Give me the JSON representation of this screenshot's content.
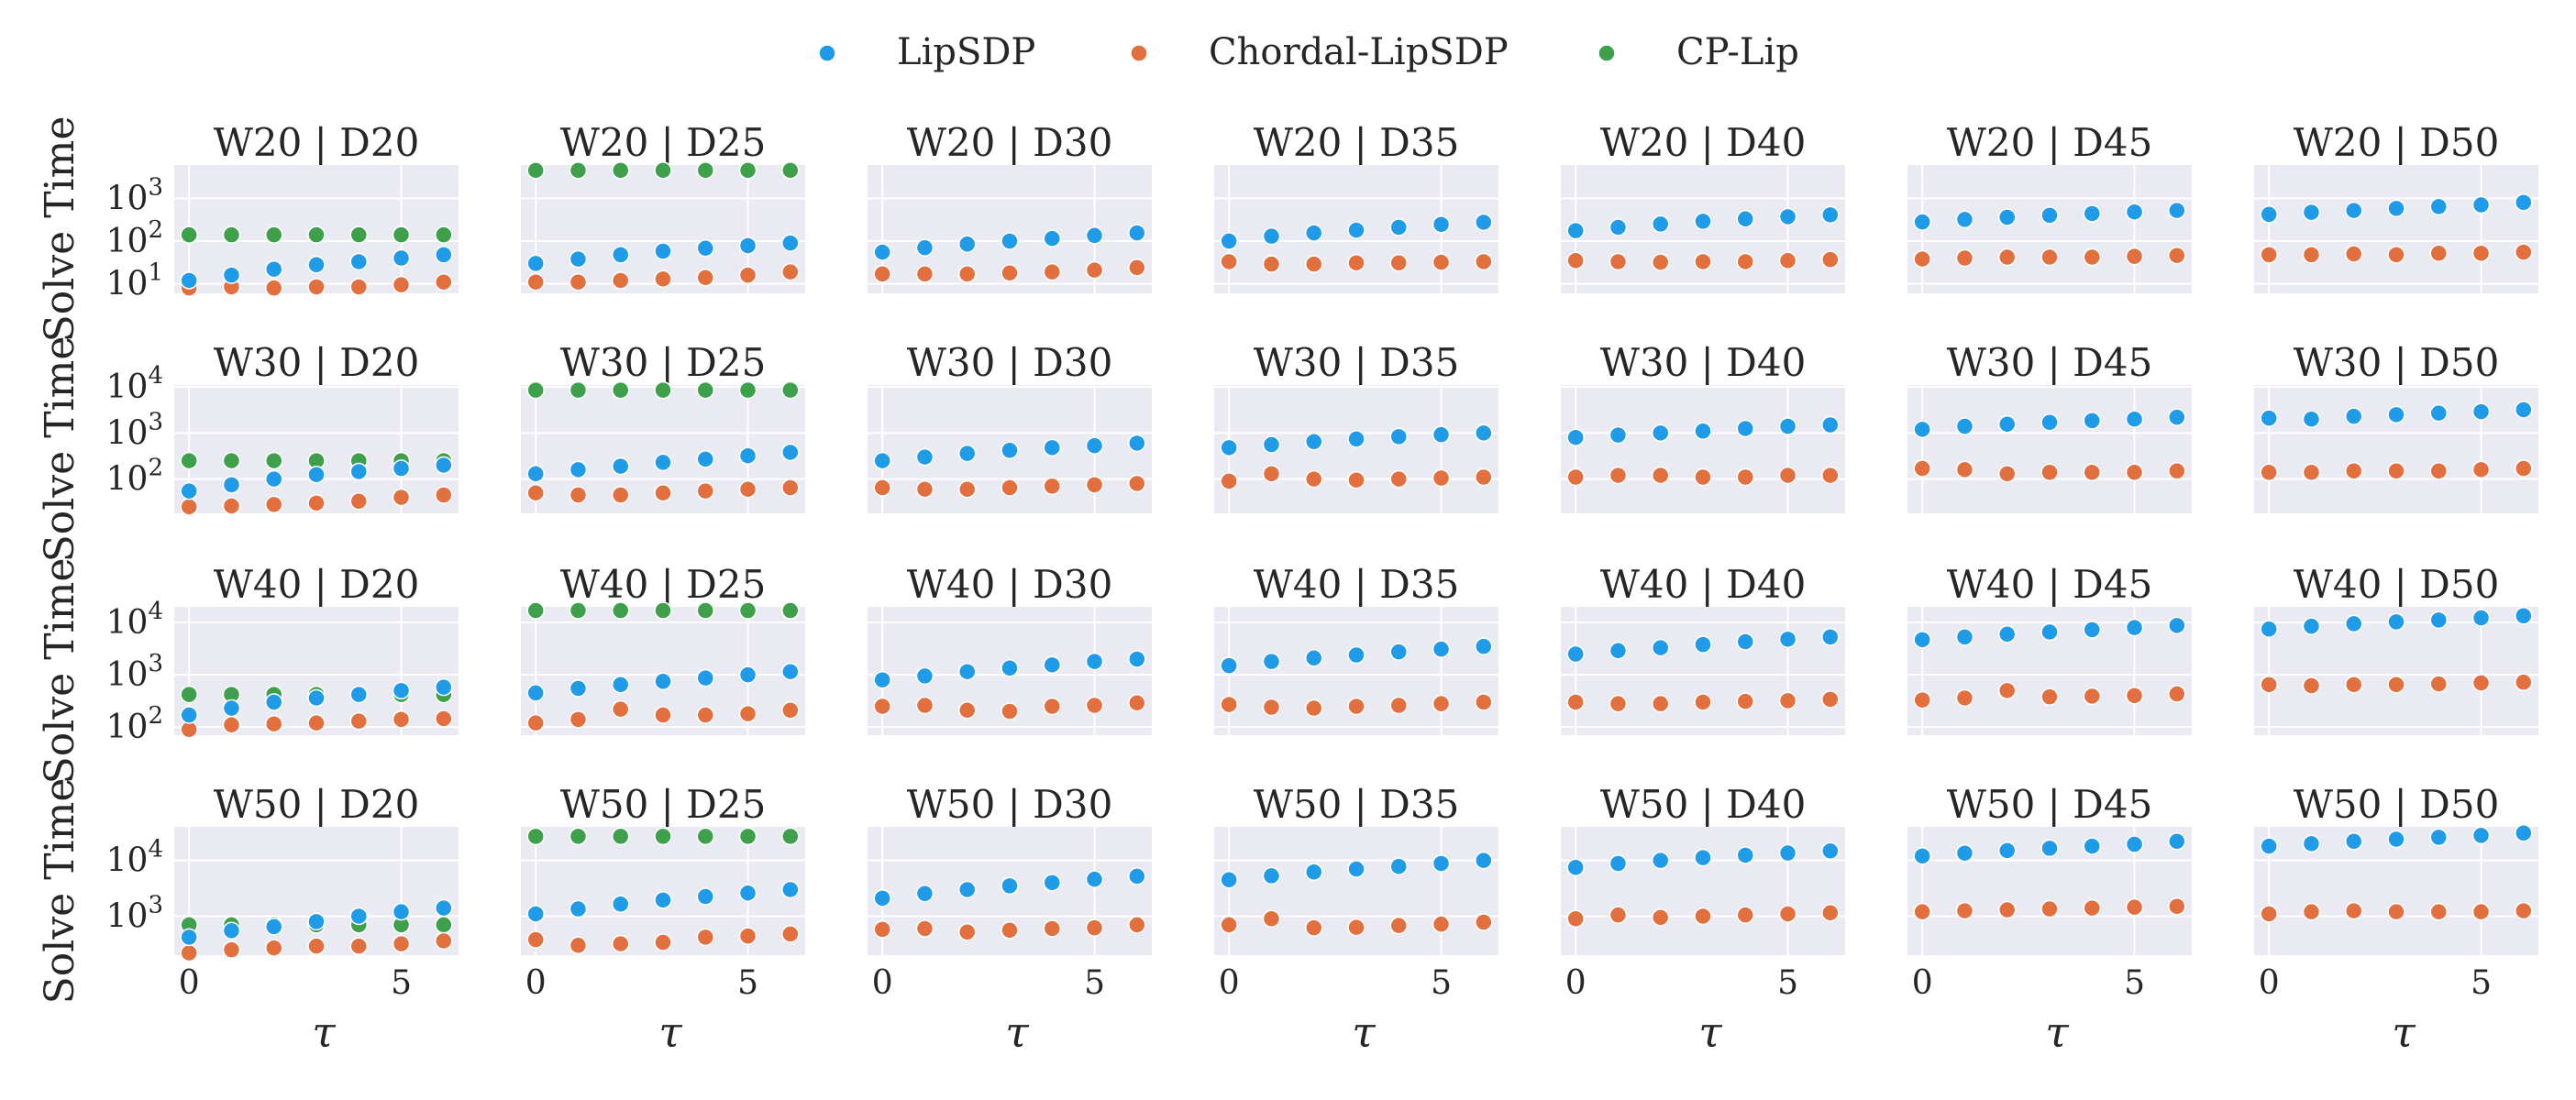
{
  "chart_data": {
    "type": "scatter",
    "x_label_symbol": "τ",
    "y_label": "Solve Time",
    "y_scale": "log",
    "x": [
      0,
      1,
      2,
      3,
      4,
      5,
      6
    ],
    "x_ticks": [
      0,
      5
    ],
    "colors": {
      "LipSDP": "#1f9be8",
      "Chordal-LipSDP": "#e2703f",
      "CP-Lip": "#3ea04a",
      "background": "#eaeaf2",
      "grid": "#ffffff"
    },
    "legend": {
      "placement": "top-center",
      "entries": [
        "LipSDP",
        "Chordal-LipSDP",
        "CP-Lip"
      ]
    },
    "rows": [
      {
        "width": "W20",
        "ylim": [
          6,
          6000
        ],
        "yticks": [
          {
            "value": 10,
            "base": "10",
            "exp": "1"
          },
          {
            "value": 100,
            "base": "10",
            "exp": "2"
          },
          {
            "value": 1000,
            "base": "10",
            "exp": "3"
          }
        ],
        "panels": [
          {
            "title": "W20 | D20",
            "series": {
              "LipSDP": [
                12,
                16,
                22,
                28,
                33,
                40,
                48
              ],
              "Chordal-LipSDP": [
                8,
                8.5,
                8,
                8.5,
                8.5,
                9.5,
                11
              ],
              "CP-Lip": [
                140,
                140,
                140,
                140,
                140,
                140,
                140
              ]
            }
          },
          {
            "title": "W20 | D25",
            "series": {
              "LipSDP": [
                30,
                38,
                48,
                58,
                68,
                78,
                90
              ],
              "Chordal-LipSDP": [
                11,
                11,
                12,
                13,
                14,
                16,
                19
              ],
              "CP-Lip": [
                4500,
                4500,
                4500,
                4500,
                4500,
                4500,
                4500
              ]
            }
          },
          {
            "title": "W20 | D30",
            "series": {
              "LipSDP": [
                55,
                70,
                85,
                100,
                115,
                135,
                155
              ],
              "Chordal-LipSDP": [
                17,
                17,
                17,
                18,
                19,
                21,
                24
              ],
              "CP-Lip": []
            }
          },
          {
            "title": "W20 | D35",
            "series": {
              "LipSDP": [
                100,
                130,
                155,
                180,
                210,
                245,
                275
              ],
              "Chordal-LipSDP": [
                33,
                29,
                29,
                31,
                31,
                32,
                33
              ],
              "CP-Lip": []
            }
          },
          {
            "title": "W20 | D40",
            "series": {
              "LipSDP": [
                175,
                210,
                250,
                290,
                330,
                370,
                410
              ],
              "Chordal-LipSDP": [
                35,
                33,
                32,
                33,
                33,
                35,
                37
              ],
              "CP-Lip": []
            }
          },
          {
            "title": "W20 | D45",
            "series": {
              "LipSDP": [
                280,
                320,
                360,
                400,
                440,
                480,
                520
              ],
              "Chordal-LipSDP": [
                38,
                40,
                42,
                42,
                42,
                44,
                46
              ],
              "CP-Lip": []
            }
          },
          {
            "title": "W20 | D50",
            "series": {
              "LipSDP": [
                420,
                470,
                520,
                580,
                640,
                700,
                800
              ],
              "Chordal-LipSDP": [
                48,
                48,
                50,
                48,
                52,
                52,
                55
              ],
              "CP-Lip": []
            }
          }
        ]
      },
      {
        "width": "W30",
        "ylim": [
          18,
          11000
        ],
        "yticks": [
          {
            "value": 100,
            "base": "10",
            "exp": "2"
          },
          {
            "value": 1000,
            "base": "10",
            "exp": "3"
          },
          {
            "value": 10000,
            "base": "10",
            "exp": "4"
          }
        ],
        "panels": [
          {
            "title": "W30 | D20",
            "series": {
              "LipSDP": [
                55,
                75,
                100,
                125,
                145,
                170,
                200
              ],
              "Chordal-LipSDP": [
                25,
                26,
                28,
                30,
                33,
                40,
                45
              ],
              "CP-Lip": [
                250,
                250,
                250,
                250,
                250,
                250,
                250
              ]
            }
          },
          {
            "title": "W30 | D25",
            "series": {
              "LipSDP": [
                130,
                160,
                190,
                230,
                270,
                320,
                380
              ],
              "Chordal-LipSDP": [
                50,
                45,
                45,
                50,
                55,
                60,
                65
              ],
              "CP-Lip": [
                8500,
                8500,
                8500,
                8500,
                8500,
                8500,
                8500
              ]
            }
          },
          {
            "title": "W30 | D30",
            "series": {
              "LipSDP": [
                250,
                300,
                360,
                420,
                480,
                530,
                600
              ],
              "Chordal-LipSDP": [
                65,
                60,
                60,
                65,
                70,
                75,
                80
              ],
              "CP-Lip": []
            }
          },
          {
            "title": "W30 | D35",
            "series": {
              "LipSDP": [
                480,
                560,
                650,
                740,
                830,
                920,
                1000
              ],
              "Chordal-LipSDP": [
                90,
                130,
                100,
                95,
                100,
                105,
                110
              ],
              "CP-Lip": []
            }
          },
          {
            "title": "W30 | D40",
            "series": {
              "LipSDP": [
                800,
                900,
                1000,
                1100,
                1250,
                1400,
                1500
              ],
              "Chordal-LipSDP": [
                110,
                120,
                120,
                110,
                110,
                120,
                120
              ],
              "CP-Lip": []
            }
          },
          {
            "title": "W30 | D45",
            "series": {
              "LipSDP": [
                1200,
                1400,
                1550,
                1700,
                1850,
                2000,
                2200
              ],
              "Chordal-LipSDP": [
                170,
                160,
                130,
                140,
                140,
                140,
                150
              ],
              "CP-Lip": []
            }
          },
          {
            "title": "W30 | D50",
            "series": {
              "LipSDP": [
                2100,
                2000,
                2300,
                2500,
                2700,
                2900,
                3200
              ],
              "Chordal-LipSDP": [
                140,
                140,
                150,
                150,
                150,
                160,
                170
              ],
              "CP-Lip": []
            }
          }
        ]
      },
      {
        "width": "W40",
        "ylim": [
          70,
          20000
        ],
        "yticks": [
          {
            "value": 100,
            "base": "10",
            "exp": "2"
          },
          {
            "value": 1000,
            "base": "10",
            "exp": "3"
          },
          {
            "value": 10000,
            "base": "10",
            "exp": "4"
          }
        ],
        "panels": [
          {
            "title": "W40 | D20",
            "series": {
              "LipSDP": [
                170,
                230,
                300,
                360,
                420,
                500,
                580
              ],
              "Chordal-LipSDP": [
                90,
                110,
                115,
                120,
                130,
                140,
                145
              ],
              "CP-Lip": [
                420,
                420,
                420,
                420,
                420,
                420,
                420
              ]
            }
          },
          {
            "title": "W40 | D25",
            "series": {
              "LipSDP": [
                450,
                550,
                650,
                750,
                870,
                1000,
                1150
              ],
              "Chordal-LipSDP": [
                120,
                140,
                220,
                170,
                170,
                180,
                210
              ],
              "CP-Lip": [
                17000,
                17000,
                17000,
                17000,
                17000,
                17000,
                17000
              ]
            }
          },
          {
            "title": "W40 | D30",
            "series": {
              "LipSDP": [
                800,
                950,
                1150,
                1350,
                1550,
                1800,
                2000
              ],
              "Chordal-LipSDP": [
                250,
                260,
                210,
                200,
                250,
                260,
                290
              ],
              "CP-Lip": []
            }
          },
          {
            "title": "W40 | D35",
            "series": {
              "LipSDP": [
                1500,
                1800,
                2100,
                2400,
                2750,
                3100,
                3500
              ],
              "Chordal-LipSDP": [
                270,
                240,
                230,
                250,
                260,
                280,
                300
              ],
              "CP-Lip": []
            }
          },
          {
            "title": "W40 | D40",
            "series": {
              "LipSDP": [
                2500,
                2900,
                3300,
                3800,
                4300,
                4800,
                5300
              ],
              "Chordal-LipSDP": [
                300,
                280,
                280,
                300,
                310,
                320,
                340
              ],
              "CP-Lip": []
            }
          },
          {
            "title": "W40 | D45",
            "series": {
              "LipSDP": [
                4700,
                5300,
                6000,
                6600,
                7300,
                8000,
                8800
              ],
              "Chordal-LipSDP": [
                330,
                360,
                500,
                380,
                390,
                400,
                430
              ],
              "CP-Lip": []
            }
          },
          {
            "title": "W40 | D50",
            "series": {
              "LipSDP": [
                7500,
                8500,
                9500,
                10300,
                11200,
                12300,
                13500
              ],
              "Chordal-LipSDP": [
                650,
                620,
                650,
                650,
                670,
                700,
                720
              ],
              "CP-Lip": []
            }
          }
        ]
      },
      {
        "width": "W50",
        "ylim": [
          200,
          40000
        ],
        "yticks": [
          {
            "value": 1000,
            "base": "10",
            "exp": "3"
          },
          {
            "value": 10000,
            "base": "10",
            "exp": "4"
          }
        ],
        "panels": [
          {
            "title": "W50 | D20",
            "series": {
              "LipSDP": [
                420,
                550,
                650,
                800,
                1000,
                1200,
                1400
              ],
              "Chordal-LipSDP": [
                220,
                250,
                270,
                290,
                290,
                320,
                360
              ],
              "CP-Lip": [
                700,
                700,
                700,
                700,
                700,
                700,
                700
              ]
            }
          },
          {
            "title": "W50 | D25",
            "series": {
              "LipSDP": [
                1100,
                1350,
                1650,
                1950,
                2250,
                2600,
                3000
              ],
              "Chordal-LipSDP": [
                380,
                300,
                320,
                340,
                420,
                440,
                480
              ],
              "CP-Lip": [
                27000,
                27000,
                27000,
                27000,
                27000,
                27000,
                27000
              ]
            }
          },
          {
            "title": "W50 | D30",
            "series": {
              "LipSDP": [
                2100,
                2550,
                3000,
                3500,
                4000,
                4600,
                5200
              ],
              "Chordal-LipSDP": [
                580,
                600,
                520,
                560,
                600,
                620,
                700
              ],
              "CP-Lip": []
            }
          },
          {
            "title": "W50 | D35",
            "series": {
              "LipSDP": [
                4500,
                5300,
                6200,
                7000,
                7800,
                8800,
                10000
              ],
              "Chordal-LipSDP": [
                700,
                900,
                620,
                630,
                680,
                720,
                780
              ],
              "CP-Lip": []
            }
          },
          {
            "title": "W50 | D40",
            "series": {
              "LipSDP": [
                7500,
                8800,
                10000,
                11200,
                12400,
                13600,
                14800
              ],
              "Chordal-LipSDP": [
                900,
                1050,
                950,
                1000,
                1050,
                1100,
                1150
              ],
              "CP-Lip": []
            }
          },
          {
            "title": "W50 | D45",
            "series": {
              "LipSDP": [
                12000,
                13500,
                15000,
                16500,
                18000,
                19500,
                22000
              ],
              "Chordal-LipSDP": [
                1200,
                1250,
                1300,
                1350,
                1400,
                1450,
                1500
              ],
              "CP-Lip": []
            }
          },
          {
            "title": "W50 | D50",
            "series": {
              "LipSDP": [
                18000,
                20000,
                22000,
                24000,
                26000,
                28000,
                31000
              ],
              "Chordal-LipSDP": [
                1100,
                1200,
                1250,
                1200,
                1200,
                1200,
                1250
              ],
              "CP-Lip": []
            }
          }
        ]
      }
    ]
  }
}
